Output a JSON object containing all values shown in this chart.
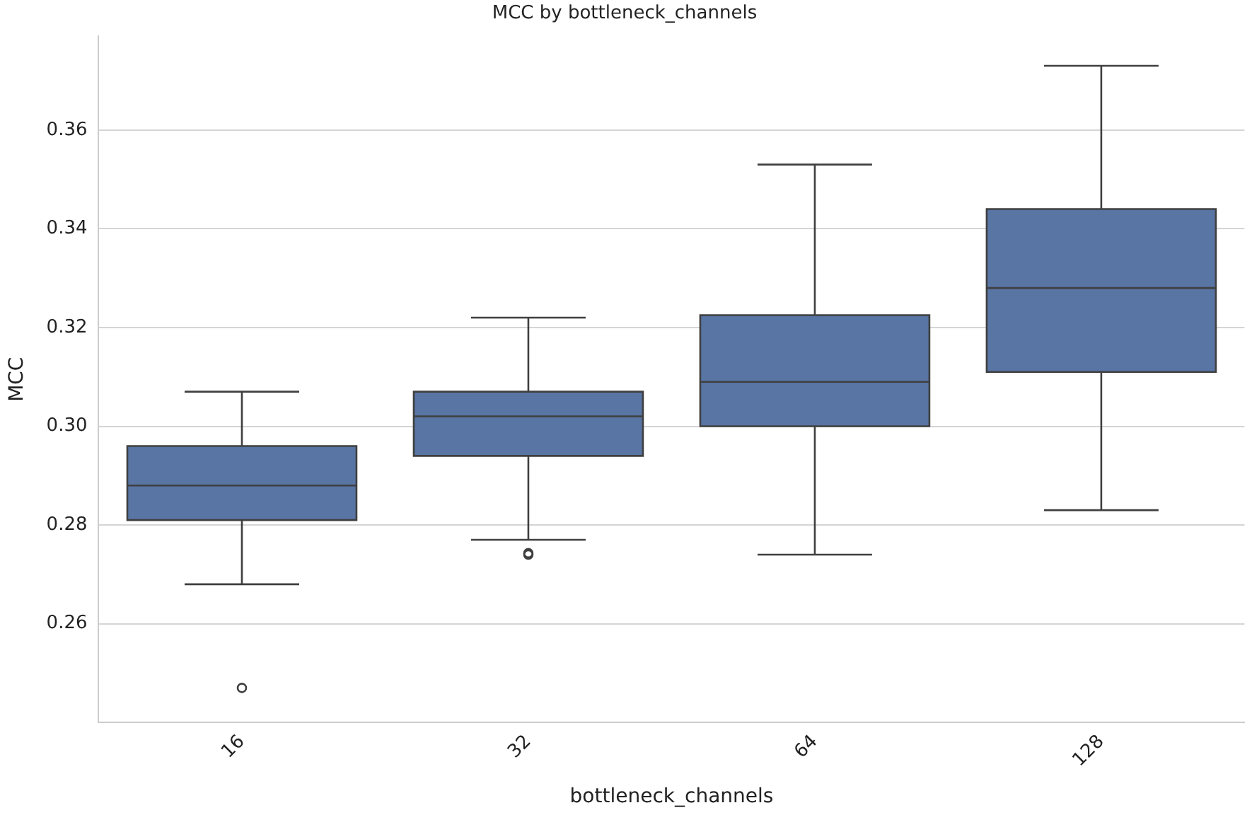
{
  "chart_data": {
    "type": "box",
    "title": "MCC by bottleneck_channels",
    "xlabel": "bottleneck_channels",
    "ylabel": "MCC",
    "categories": [
      "16",
      "32",
      "64",
      "128"
    ],
    "color": "#5875a4",
    "boxes": [
      {
        "low": 0.268,
        "q1": 0.281,
        "median": 0.288,
        "q3": 0.296,
        "high": 0.307,
        "outliers": [
          0.247
        ]
      },
      {
        "low": 0.277,
        "q1": 0.294,
        "median": 0.302,
        "q3": 0.307,
        "high": 0.322,
        "outliers": [
          0.274,
          0.2743
        ]
      },
      {
        "low": 0.274,
        "q1": 0.3,
        "median": 0.309,
        "q3": 0.3225,
        "high": 0.353
      },
      {
        "low": 0.283,
        "q1": 0.311,
        "median": 0.328,
        "q3": 0.344,
        "high": 0.373
      }
    ],
    "ylim": [
      0.24,
      0.379
    ],
    "yticks": [
      0.26,
      0.28,
      {
        "value": 0.3,
        "label": "0.30"
      },
      0.32,
      0.34,
      0.36
    ],
    "grid": "y"
  }
}
